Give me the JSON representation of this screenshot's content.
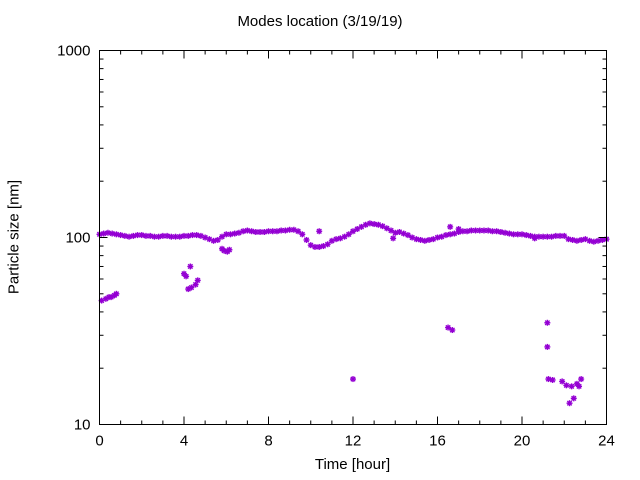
{
  "chart_data": {
    "type": "scatter",
    "title": "Modes location (3/19/19)",
    "xlabel": "Time [hour]",
    "ylabel": "Particle size [nm]",
    "xlim": [
      0,
      24
    ],
    "ylim": [
      10,
      1000
    ],
    "yscale": "log",
    "x_ticks": [
      0,
      4,
      8,
      12,
      16,
      20,
      24
    ],
    "x_tick_labels": [
      "0",
      "4",
      "8",
      "12",
      "16",
      "20",
      "24"
    ],
    "y_ticks": [
      10,
      100,
      1000
    ],
    "y_tick_labels": [
      "10",
      "100",
      "1000"
    ],
    "grid": false,
    "marker_color": "#9400d3",
    "main_band": [
      [
        0.0,
        104
      ],
      [
        0.2,
        105
      ],
      [
        0.4,
        106
      ],
      [
        0.6,
        105
      ],
      [
        0.8,
        104
      ],
      [
        1.0,
        103
      ],
      [
        1.2,
        102
      ],
      [
        1.4,
        101
      ],
      [
        1.6,
        102
      ],
      [
        1.8,
        103
      ],
      [
        2.0,
        103
      ],
      [
        2.2,
        102
      ],
      [
        2.4,
        102
      ],
      [
        2.6,
        101
      ],
      [
        2.8,
        101
      ],
      [
        3.0,
        102
      ],
      [
        3.2,
        102
      ],
      [
        3.4,
        101
      ],
      [
        3.6,
        101
      ],
      [
        3.8,
        101
      ],
      [
        4.0,
        102
      ],
      [
        4.2,
        102
      ],
      [
        4.4,
        103
      ],
      [
        4.6,
        103
      ],
      [
        4.8,
        102
      ],
      [
        5.0,
        100
      ],
      [
        5.2,
        98
      ],
      [
        5.4,
        96
      ],
      [
        5.6,
        97
      ],
      [
        5.8,
        101
      ],
      [
        6.0,
        104
      ],
      [
        6.2,
        104
      ],
      [
        6.4,
        105
      ],
      [
        6.6,
        106
      ],
      [
        6.8,
        108
      ],
      [
        7.0,
        109
      ],
      [
        7.2,
        108
      ],
      [
        7.4,
        107
      ],
      [
        7.6,
        107
      ],
      [
        7.8,
        107
      ],
      [
        8.0,
        108
      ],
      [
        8.2,
        108
      ],
      [
        8.4,
        108
      ],
      [
        8.6,
        109
      ],
      [
        8.8,
        109
      ],
      [
        9.0,
        110
      ],
      [
        9.2,
        110
      ],
      [
        9.4,
        108
      ],
      [
        9.6,
        104
      ],
      [
        9.8,
        97
      ],
      [
        10.0,
        91
      ],
      [
        10.2,
        89
      ],
      [
        10.4,
        89
      ],
      [
        10.6,
        90
      ],
      [
        10.8,
        92
      ],
      [
        11.0,
        96
      ],
      [
        11.2,
        98
      ],
      [
        11.4,
        99
      ],
      [
        11.6,
        101
      ],
      [
        11.8,
        104
      ],
      [
        12.0,
        108
      ],
      [
        12.2,
        111
      ],
      [
        12.4,
        114
      ],
      [
        12.6,
        117
      ],
      [
        12.8,
        119
      ],
      [
        13.0,
        118
      ],
      [
        13.2,
        117
      ],
      [
        13.4,
        115
      ],
      [
        13.6,
        112
      ],
      [
        13.8,
        109
      ],
      [
        14.0,
        106
      ],
      [
        14.2,
        107
      ],
      [
        14.4,
        105
      ],
      [
        14.6,
        103
      ],
      [
        14.8,
        100
      ],
      [
        15.0,
        98
      ],
      [
        15.2,
        97
      ],
      [
        15.4,
        96
      ],
      [
        15.6,
        97
      ],
      [
        15.8,
        98
      ],
      [
        16.0,
        100
      ],
      [
        16.2,
        101
      ],
      [
        16.4,
        103
      ],
      [
        16.6,
        104
      ],
      [
        16.8,
        105
      ],
      [
        17.0,
        107
      ],
      [
        17.2,
        108
      ],
      [
        17.4,
        108
      ],
      [
        17.6,
        109
      ],
      [
        17.8,
        109
      ],
      [
        18.0,
        109
      ],
      [
        18.2,
        109
      ],
      [
        18.4,
        109
      ],
      [
        18.6,
        108
      ],
      [
        18.8,
        108
      ],
      [
        19.0,
        107
      ],
      [
        19.2,
        106
      ],
      [
        19.4,
        105
      ],
      [
        19.6,
        104
      ],
      [
        19.8,
        104
      ],
      [
        20.0,
        104
      ],
      [
        20.2,
        103
      ],
      [
        20.4,
        102
      ],
      [
        20.6,
        101
      ],
      [
        20.8,
        101
      ],
      [
        21.0,
        101
      ],
      [
        21.2,
        101
      ],
      [
        21.4,
        101
      ],
      [
        21.6,
        102
      ],
      [
        21.8,
        102
      ],
      [
        22.0,
        102
      ],
      [
        22.2,
        98
      ],
      [
        22.4,
        97
      ],
      [
        22.6,
        96
      ],
      [
        22.8,
        97
      ],
      [
        23.0,
        98
      ],
      [
        23.2,
        96
      ],
      [
        23.4,
        95
      ],
      [
        23.6,
        96
      ],
      [
        23.8,
        97
      ],
      [
        24.0,
        98
      ]
    ],
    "secondary_points": [
      [
        0.1,
        46
      ],
      [
        0.3,
        47
      ],
      [
        0.45,
        48
      ],
      [
        0.55,
        48
      ],
      [
        0.7,
        49
      ],
      [
        0.8,
        50
      ],
      [
        4.0,
        64
      ],
      [
        4.1,
        62
      ],
      [
        4.2,
        53
      ],
      [
        4.35,
        54
      ],
      [
        4.3,
        70
      ],
      [
        4.55,
        56
      ],
      [
        4.65,
        59
      ],
      [
        5.8,
        87
      ],
      [
        5.9,
        85
      ],
      [
        6.05,
        84
      ],
      [
        6.15,
        86
      ],
      [
        10.4,
        108
      ],
      [
        12.0,
        17.5
      ],
      [
        13.9,
        99
      ],
      [
        16.5,
        33
      ],
      [
        16.6,
        114
      ],
      [
        16.7,
        32
      ],
      [
        17.0,
        111
      ],
      [
        20.6,
        99
      ],
      [
        21.2,
        35
      ],
      [
        21.2,
        26
      ],
      [
        21.25,
        17.5
      ],
      [
        21.45,
        17.3
      ],
      [
        21.9,
        17
      ],
      [
        22.1,
        16.2
      ],
      [
        22.25,
        13
      ],
      [
        22.35,
        16
      ],
      [
        22.45,
        13.8
      ],
      [
        22.6,
        16.5
      ],
      [
        22.7,
        16
      ],
      [
        22.8,
        17.5
      ]
    ]
  }
}
